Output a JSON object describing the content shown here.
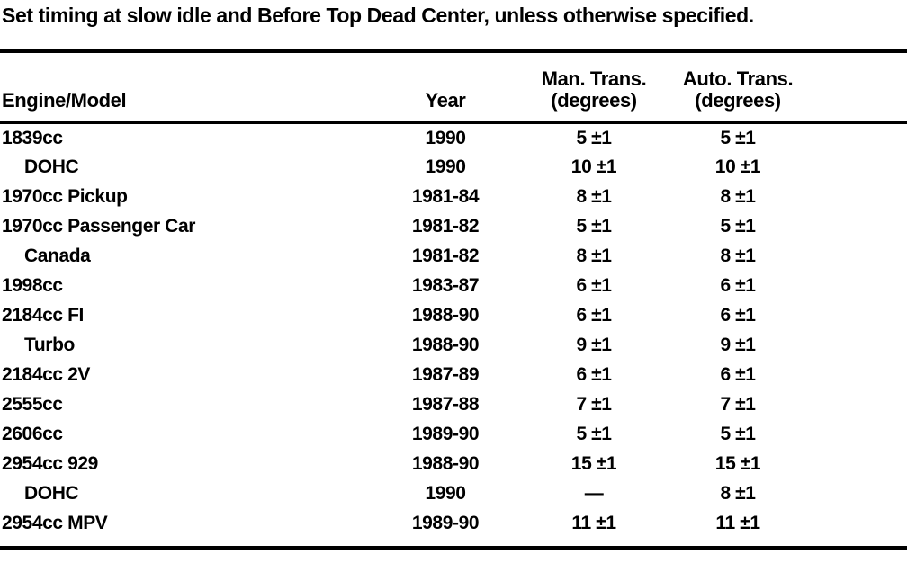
{
  "note": "Set timing at slow idle and Before Top Dead Center, unless otherwise specified.",
  "colors": {
    "ink": "#000000",
    "paper": "#ffffff"
  },
  "table": {
    "columns": [
      {
        "label": "Engine/Model",
        "sub": ""
      },
      {
        "label": "Year",
        "sub": ""
      },
      {
        "label": "Man. Trans.",
        "sub": "(degrees)"
      },
      {
        "label": "Auto. Trans.",
        "sub": "(degrees)"
      }
    ],
    "rows": [
      {
        "engine": "1839cc",
        "indent": false,
        "year": "1990",
        "man": "5 ±1",
        "auto": "5 ±1"
      },
      {
        "engine": "DOHC",
        "indent": true,
        "year": "1990",
        "man": "10 ±1",
        "auto": "10 ±1"
      },
      {
        "engine": "1970cc Pickup",
        "indent": false,
        "year": "1981-84",
        "man": "8 ±1",
        "auto": "8 ±1"
      },
      {
        "engine": "1970cc Passenger Car",
        "indent": false,
        "year": "1981-82",
        "man": "5 ±1",
        "auto": "5 ±1"
      },
      {
        "engine": "Canada",
        "indent": true,
        "year": "1981-82",
        "man": "8 ±1",
        "auto": "8 ±1"
      },
      {
        "engine": "1998cc",
        "indent": false,
        "year": "1983-87",
        "man": "6 ±1",
        "auto": "6 ±1"
      },
      {
        "engine": "2184cc FI",
        "indent": false,
        "year": "1988-90",
        "man": "6 ±1",
        "auto": "6 ±1"
      },
      {
        "engine": "Turbo",
        "indent": true,
        "year": "1988-90",
        "man": "9 ±1",
        "auto": "9 ±1"
      },
      {
        "engine": "2184cc 2V",
        "indent": false,
        "year": "1987-89",
        "man": "6 ±1",
        "auto": "6 ±1"
      },
      {
        "engine": "2555cc",
        "indent": false,
        "year": "1987-88",
        "man": "7 ±1",
        "auto": "7 ±1"
      },
      {
        "engine": "2606cc",
        "indent": false,
        "year": "1989-90",
        "man": "5 ±1",
        "auto": "5 ±1"
      },
      {
        "engine": "2954cc 929",
        "indent": false,
        "year": "1988-90",
        "man": "15 ±1",
        "auto": "15 ±1"
      },
      {
        "engine": "DOHC",
        "indent": true,
        "year": "1990",
        "man": "—",
        "auto": "8 ±1"
      },
      {
        "engine": "2954cc MPV",
        "indent": false,
        "year": "1989-90",
        "man": "11 ±1",
        "auto": "11 ±1"
      }
    ]
  }
}
